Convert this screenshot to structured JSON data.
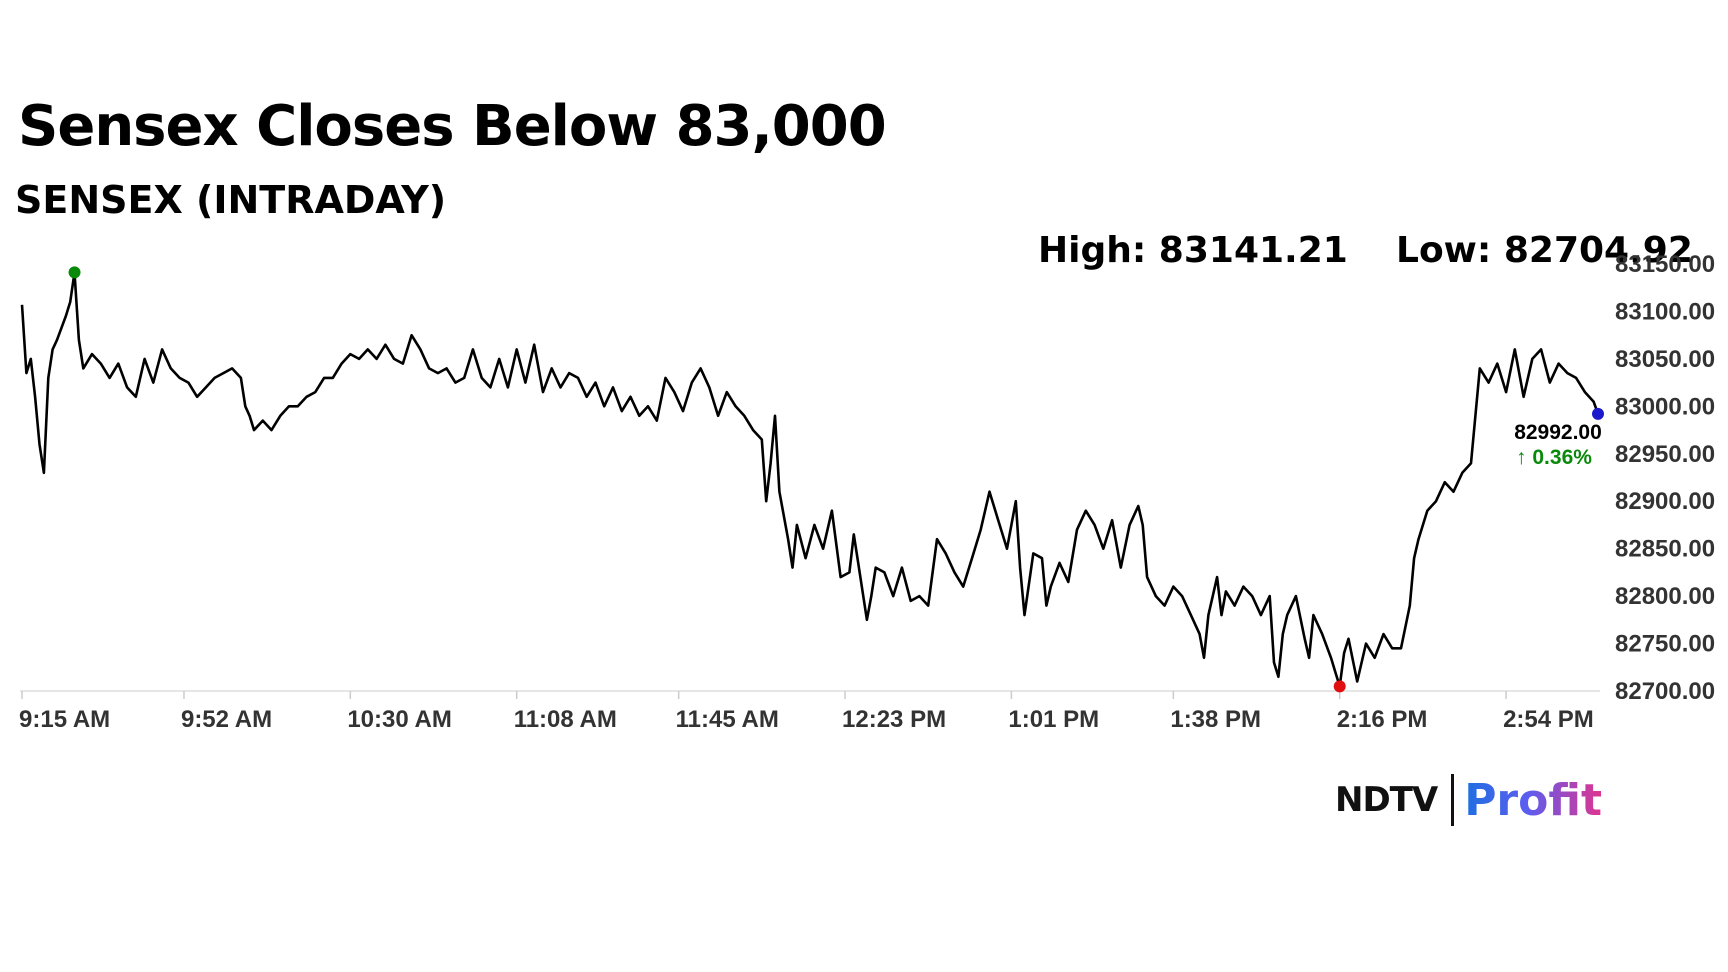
{
  "header": {
    "title": "Sensex Closes Below 83,000",
    "subtitle": "SENSEX (INTRADAY)",
    "high": "High: 83141.21",
    "low": "Low: 82704.92"
  },
  "brand": {
    "left": "NDTV",
    "right": "Profit"
  },
  "colors": {
    "line": "#000000",
    "high_marker": "#0a8a0a",
    "low_marker": "#e01010",
    "last_marker": "#1a1acc",
    "change_positive": "#0a8a0a",
    "grid": "#dddddd"
  },
  "chart_data": {
    "type": "line",
    "title": "SENSEX (INTRADAY)",
    "xlabel": "",
    "ylabel": "",
    "ylim": [
      82700,
      83150
    ],
    "y_ticks": [
      "83150.00",
      "83100.00",
      "83050.00",
      "83000.00",
      "82950.00",
      "82900.00",
      "82850.00",
      "82800.00",
      "82750.00",
      "82700.00"
    ],
    "x_range_minutes": [
      555,
      915
    ],
    "x_ticks": [
      {
        "label": "9:15 AM",
        "t": 555
      },
      {
        "label": "9:52 AM",
        "t": 592
      },
      {
        "label": "10:30 AM",
        "t": 630
      },
      {
        "label": "11:08 AM",
        "t": 668
      },
      {
        "label": "11:45 AM",
        "t": 705
      },
      {
        "label": "12:23 PM",
        "t": 743
      },
      {
        "label": "1:01 PM",
        "t": 781
      },
      {
        "label": "1:38 PM",
        "t": 818
      },
      {
        "label": "2:16 PM",
        "t": 856
      },
      {
        "label": "2:54 PM",
        "t": 894
      }
    ],
    "series": [
      {
        "name": "",
        "points": [
          [
            555,
            83107
          ],
          [
            556,
            83035
          ],
          [
            557,
            83050
          ],
          [
            558,
            83010
          ],
          [
            559,
            82960
          ],
          [
            560,
            82930
          ],
          [
            561,
            83030
          ],
          [
            562,
            83060
          ],
          [
            563,
            83070
          ],
          [
            565,
            83095
          ],
          [
            566,
            83110
          ],
          [
            567,
            83141
          ],
          [
            568,
            83070
          ],
          [
            569,
            83040
          ],
          [
            571,
            83055
          ],
          [
            573,
            83045
          ],
          [
            575,
            83030
          ],
          [
            577,
            83045
          ],
          [
            579,
            83020
          ],
          [
            581,
            83010
          ],
          [
            583,
            83050
          ],
          [
            585,
            83025
          ],
          [
            587,
            83060
          ],
          [
            589,
            83040
          ],
          [
            591,
            83030
          ],
          [
            593,
            83025
          ],
          [
            595,
            83010
          ],
          [
            597,
            83020
          ],
          [
            599,
            83030
          ],
          [
            601,
            83035
          ],
          [
            603,
            83040
          ],
          [
            605,
            83030
          ],
          [
            606,
            83000
          ],
          [
            607,
            82990
          ],
          [
            608,
            82975
          ],
          [
            610,
            82985
          ],
          [
            612,
            82975
          ],
          [
            614,
            82990
          ],
          [
            616,
            83000
          ],
          [
            618,
            83000
          ],
          [
            620,
            83010
          ],
          [
            622,
            83015
          ],
          [
            624,
            83030
          ],
          [
            626,
            83030
          ],
          [
            628,
            83045
          ],
          [
            630,
            83055
          ],
          [
            632,
            83050
          ],
          [
            634,
            83060
          ],
          [
            636,
            83050
          ],
          [
            638,
            83065
          ],
          [
            640,
            83050
          ],
          [
            642,
            83045
          ],
          [
            644,
            83075
          ],
          [
            646,
            83060
          ],
          [
            648,
            83040
          ],
          [
            650,
            83035
          ],
          [
            652,
            83040
          ],
          [
            654,
            83025
          ],
          [
            656,
            83030
          ],
          [
            658,
            83060
          ],
          [
            660,
            83030
          ],
          [
            662,
            83020
          ],
          [
            664,
            83050
          ],
          [
            666,
            83020
          ],
          [
            668,
            83060
          ],
          [
            670,
            83025
          ],
          [
            672,
            83065
          ],
          [
            674,
            83015
          ],
          [
            676,
            83040
          ],
          [
            678,
            83020
          ],
          [
            680,
            83035
          ],
          [
            682,
            83030
          ],
          [
            684,
            83010
          ],
          [
            686,
            83025
          ],
          [
            688,
            83000
          ],
          [
            690,
            83020
          ],
          [
            692,
            82995
          ],
          [
            694,
            83010
          ],
          [
            696,
            82990
          ],
          [
            698,
            83000
          ],
          [
            700,
            82985
          ],
          [
            702,
            83030
          ],
          [
            704,
            83015
          ],
          [
            706,
            82995
          ],
          [
            708,
            83025
          ],
          [
            710,
            83040
          ],
          [
            712,
            83020
          ],
          [
            714,
            82990
          ],
          [
            716,
            83015
          ],
          [
            718,
            83000
          ],
          [
            720,
            82990
          ],
          [
            722,
            82975
          ],
          [
            724,
            82965
          ],
          [
            725,
            82900
          ],
          [
            726,
            82940
          ],
          [
            727,
            82990
          ],
          [
            728,
            82910
          ],
          [
            730,
            82860
          ],
          [
            731,
            82830
          ],
          [
            732,
            82875
          ],
          [
            734,
            82840
          ],
          [
            736,
            82875
          ],
          [
            738,
            82850
          ],
          [
            740,
            82890
          ],
          [
            742,
            82820
          ],
          [
            744,
            82825
          ],
          [
            745,
            82865
          ],
          [
            746,
            82835
          ],
          [
            748,
            82775
          ],
          [
            749,
            82800
          ],
          [
            750,
            82830
          ],
          [
            752,
            82825
          ],
          [
            754,
            82800
          ],
          [
            756,
            82830
          ],
          [
            758,
            82795
          ],
          [
            760,
            82800
          ],
          [
            762,
            82790
          ],
          [
            764,
            82860
          ],
          [
            766,
            82845
          ],
          [
            768,
            82825
          ],
          [
            770,
            82810
          ],
          [
            772,
            82840
          ],
          [
            774,
            82870
          ],
          [
            776,
            82910
          ],
          [
            778,
            82880
          ],
          [
            780,
            82850
          ],
          [
            782,
            82900
          ],
          [
            783,
            82830
          ],
          [
            784,
            82780
          ],
          [
            786,
            82845
          ],
          [
            788,
            82840
          ],
          [
            789,
            82790
          ],
          [
            790,
            82810
          ],
          [
            792,
            82835
          ],
          [
            794,
            82815
          ],
          [
            796,
            82870
          ],
          [
            798,
            82890
          ],
          [
            800,
            82875
          ],
          [
            802,
            82850
          ],
          [
            804,
            82880
          ],
          [
            806,
            82830
          ],
          [
            808,
            82875
          ],
          [
            810,
            82895
          ],
          [
            811,
            82875
          ],
          [
            812,
            82820
          ],
          [
            814,
            82800
          ],
          [
            816,
            82790
          ],
          [
            818,
            82810
          ],
          [
            820,
            82800
          ],
          [
            822,
            82780
          ],
          [
            824,
            82760
          ],
          [
            825,
            82735
          ],
          [
            826,
            82780
          ],
          [
            828,
            82820
          ],
          [
            829,
            82780
          ],
          [
            830,
            82805
          ],
          [
            832,
            82790
          ],
          [
            834,
            82810
          ],
          [
            836,
            82800
          ],
          [
            838,
            82780
          ],
          [
            840,
            82800
          ],
          [
            841,
            82730
          ],
          [
            842,
            82715
          ],
          [
            843,
            82760
          ],
          [
            844,
            82780
          ],
          [
            846,
            82800
          ],
          [
            848,
            82755
          ],
          [
            849,
            82735
          ],
          [
            850,
            82780
          ],
          [
            852,
            82760
          ],
          [
            854,
            82735
          ],
          [
            855,
            82720
          ],
          [
            856,
            82705
          ],
          [
            857,
            82740
          ],
          [
            858,
            82755
          ],
          [
            860,
            82710
          ],
          [
            862,
            82750
          ],
          [
            864,
            82735
          ],
          [
            866,
            82760
          ],
          [
            868,
            82745
          ],
          [
            870,
            82745
          ],
          [
            872,
            82790
          ],
          [
            873,
            82840
          ],
          [
            874,
            82860
          ],
          [
            876,
            82890
          ],
          [
            878,
            82900
          ],
          [
            880,
            82920
          ],
          [
            882,
            82910
          ],
          [
            884,
            82930
          ],
          [
            886,
            82940
          ],
          [
            887,
            82990
          ],
          [
            888,
            83040
          ],
          [
            890,
            83025
          ],
          [
            892,
            83045
          ],
          [
            894,
            83015
          ],
          [
            896,
            83060
          ],
          [
            898,
            83010
          ],
          [
            900,
            83050
          ],
          [
            902,
            83060
          ],
          [
            904,
            83025
          ],
          [
            906,
            83045
          ],
          [
            908,
            83035
          ],
          [
            910,
            83030
          ],
          [
            912,
            83015
          ],
          [
            914,
            83005
          ],
          [
            915,
            82992
          ]
        ]
      }
    ],
    "high": {
      "label": "High: 83141.21",
      "value": 83141.21,
      "t": 567
    },
    "low": {
      "label": "Low: 82704.92",
      "value": 82704.92,
      "t": 856
    },
    "last": {
      "value": "82992.00",
      "change": "↑ 0.36%",
      "t": 915,
      "y": 82992
    },
    "grid": false,
    "legend": "none"
  }
}
